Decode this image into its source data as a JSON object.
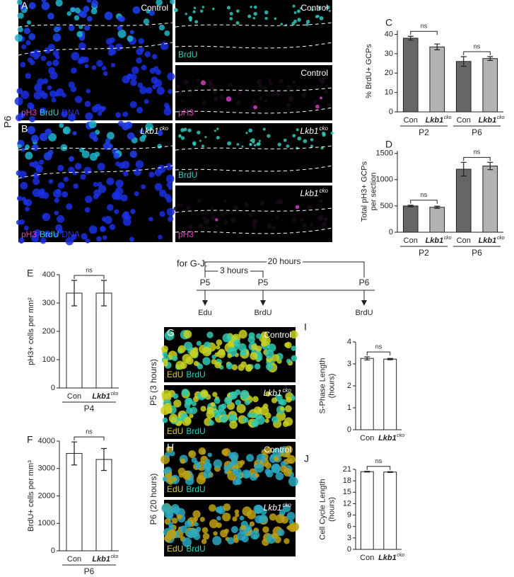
{
  "age_label": "P6",
  "micrographs": [
    {
      "letter": "A",
      "condition": "Control",
      "stains": [
        "pH3",
        "BrdU",
        "DNA"
      ],
      "stain_colors": [
        "#e040c0",
        "#2fd3c0",
        "#3333ff"
      ]
    },
    {
      "condition": "Control",
      "stains": [
        "BrdU"
      ],
      "stain_colors": [
        "#2fd3c0"
      ]
    },
    {
      "condition": "Control",
      "stains": [
        "pH3"
      ],
      "stain_colors": [
        "#e040c0"
      ]
    },
    {
      "letter": "B",
      "condition": "Lkb1",
      "condition_sup": "cko",
      "stains": [
        "pH3",
        "BrdU",
        "DNA"
      ],
      "stain_colors": [
        "#e040c0",
        "#2fd3c0",
        "#3333ff"
      ]
    },
    {
      "condition": "Lkb1",
      "condition_sup": "cko",
      "stains": [
        "BrdU"
      ],
      "stain_colors": [
        "#2fd3c0"
      ]
    },
    {
      "condition": "Lkb1",
      "condition_sup": "cko",
      "stains": [
        "pH3"
      ],
      "stain_colors": [
        "#e040c0"
      ]
    },
    {
      "letter": "G",
      "condition": "Control",
      "stains": [
        "EdU",
        "BrdU"
      ],
      "stain_colors": [
        "#e0d020",
        "#2fd3c0"
      ]
    },
    {
      "condition": "Lkb1",
      "condition_sup": "cko",
      "stains": [
        "EdU",
        "BrdU"
      ],
      "stain_colors": [
        "#e0d020",
        "#2fd3c0"
      ]
    },
    {
      "letter": "H",
      "condition": "Control",
      "stains": [
        "EdU",
        "BrdU"
      ],
      "stain_colors": [
        "#e0d020",
        "#2fd3c0"
      ]
    },
    {
      "condition": "Lkb1",
      "condition_sup": "cko",
      "stains": [
        "EdU",
        "BrdU"
      ],
      "stain_colors": [
        "#e0d020",
        "#2fd3c0"
      ]
    }
  ],
  "side_labels": [
    "P5 (3 hours)",
    "P6 (20 hours)"
  ],
  "timeline": {
    "intro": "for G-J:",
    "spans": [
      "20 hours",
      "3 hours"
    ],
    "timepoints": [
      {
        "age": "P5",
        "label": "Edu"
      },
      {
        "age": "P5",
        "label": "BrdU"
      },
      {
        "age": "P6",
        "label": "BrdU"
      }
    ]
  },
  "chart_data": [
    {
      "type": "bar",
      "panel": "C",
      "ylabel": [
        "% BrdU+ GCPs"
      ],
      "categories": [
        "Con",
        "Lkb1",
        "Con",
        "Lkb1"
      ],
      "category_superscripts": [
        null,
        "cko",
        null,
        "cko"
      ],
      "category_groups": [
        "P2",
        "P2",
        "P6",
        "P6"
      ],
      "values": [
        38,
        33.5,
        26,
        27.5
      ],
      "errors": [
        1,
        1.5,
        2.5,
        1
      ],
      "colors": [
        "#666666",
        "#b3b3b3",
        "#666666",
        "#b3b3b3"
      ],
      "significance": [
        "ns",
        "ns"
      ],
      "ylim": [
        0,
        42
      ],
      "yticks": [
        0,
        10,
        20,
        30,
        40
      ]
    },
    {
      "type": "bar",
      "panel": "D",
      "ylabel": [
        "Total pH3+ GCPs",
        "per section"
      ],
      "categories": [
        "Con",
        "Lkb1",
        "Con",
        "Lkb1"
      ],
      "category_superscripts": [
        null,
        "cko",
        null,
        "cko"
      ],
      "category_groups": [
        "P2",
        "P2",
        "P6",
        "P6"
      ],
      "values": [
        500,
        475,
        1200,
        1260
      ],
      "errors": [
        15,
        20,
        130,
        70
      ],
      "colors": [
        "#666666",
        "#b3b3b3",
        "#666666",
        "#b3b3b3"
      ],
      "significance": [
        "ns",
        "ns"
      ],
      "ylim": [
        0,
        1550
      ],
      "yticks": [
        0,
        500,
        1000,
        1500
      ]
    },
    {
      "type": "bar",
      "panel": "E",
      "ylabel": [
        "pH3+ cells per mm²"
      ],
      "categories": [
        "Con",
        "Lkb1"
      ],
      "category_superscripts": [
        null,
        "cko"
      ],
      "category_groups": [
        "P4",
        "P4"
      ],
      "values": [
        335,
        335
      ],
      "errors": [
        45,
        45
      ],
      "colors": [
        "#ffffff",
        "#ffffff"
      ],
      "significance": [
        "ns"
      ],
      "ylim": [
        0,
        400
      ],
      "yticks": [
        0,
        100,
        200,
        300,
        400
      ]
    },
    {
      "type": "bar",
      "panel": "F",
      "ylabel": [
        "BrdU+ cells per mm³"
      ],
      "categories": [
        "Con",
        "Lkb1"
      ],
      "category_superscripts": [
        null,
        "cko"
      ],
      "category_groups": [
        "P6",
        "P6"
      ],
      "values": [
        3550,
        3330
      ],
      "errors": [
        420,
        400
      ],
      "colors": [
        "#ffffff",
        "#ffffff"
      ],
      "significance": [
        "ns"
      ],
      "ylim": [
        0,
        4000
      ],
      "yticks": [
        0,
        1000,
        2000,
        3000,
        4000
      ]
    },
    {
      "type": "bar",
      "panel": "I",
      "ylabel": [
        "S-Phase Length",
        "(hours)"
      ],
      "categories": [
        "Con",
        "Lkb1"
      ],
      "category_superscripts": [
        null,
        "cko"
      ],
      "values": [
        3.25,
        3.22
      ],
      "errors": [
        0.07,
        0.03
      ],
      "colors": [
        "#ffffff",
        "#ffffff"
      ],
      "significance": [
        "ns"
      ],
      "ylim": [
        0,
        4
      ],
      "yticks": [
        0,
        1,
        2,
        3,
        4
      ]
    },
    {
      "type": "bar",
      "panel": "J",
      "ylabel": [
        "Cell Cycle Length",
        "(hours)"
      ],
      "categories": [
        "Con",
        "Lkb1"
      ],
      "category_superscripts": [
        null,
        "cko"
      ],
      "values": [
        20.4,
        20.3
      ],
      "errors": [
        0.1,
        0.1
      ],
      "colors": [
        "#ffffff",
        "#ffffff"
      ],
      "significance": [
        "ns"
      ],
      "ylim": [
        0,
        21
      ],
      "yticks": [
        0,
        3,
        6,
        9,
        12,
        15,
        18,
        21
      ]
    }
  ]
}
